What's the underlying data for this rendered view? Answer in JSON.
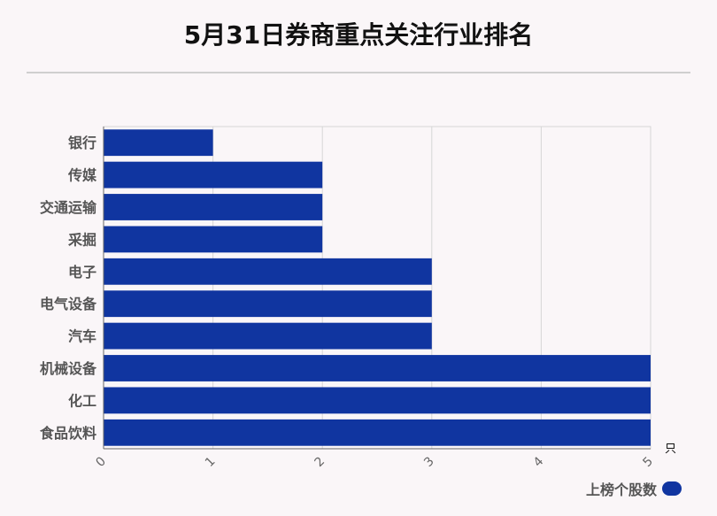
{
  "title": "5月31日券商重点关注行业排名",
  "chart_data": {
    "type": "bar",
    "orientation": "horizontal",
    "categories": [
      "银行",
      "传媒",
      "交通运输",
      "采掘",
      "电子",
      "电气设备",
      "汽车",
      "机械设备",
      "化工",
      "食品饮料"
    ],
    "series": [
      {
        "name": "上榜个股数",
        "values": [
          1,
          2,
          2,
          2,
          3,
          3,
          3,
          5,
          5,
          5
        ]
      }
    ],
    "value_axis": {
      "range": [
        0,
        5
      ],
      "ticks": [
        0,
        1,
        2,
        3,
        4,
        5
      ],
      "unit": "只"
    },
    "grid": true,
    "legend_position": "bottom-right",
    "color": "#1035a0"
  }
}
